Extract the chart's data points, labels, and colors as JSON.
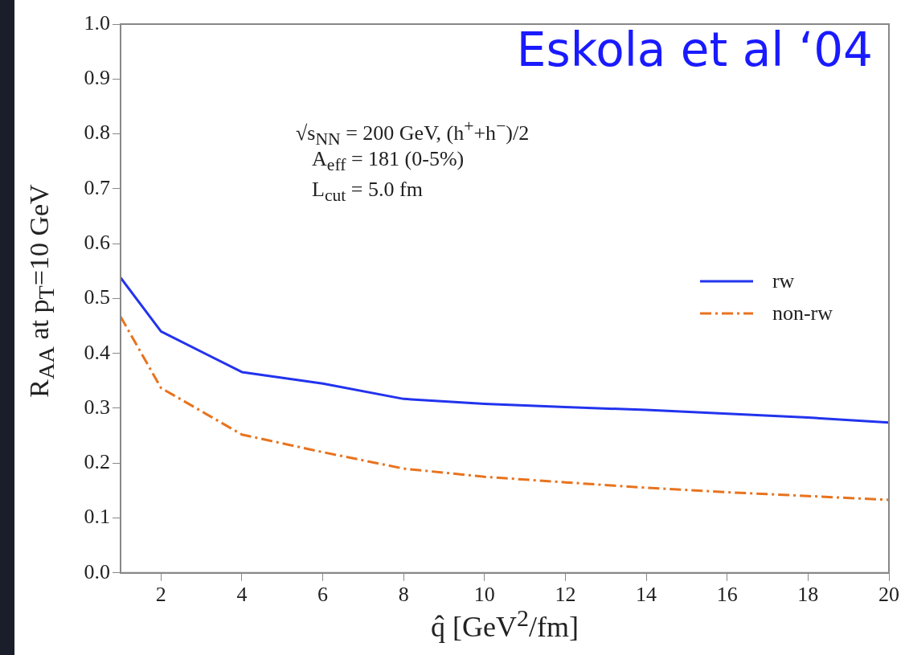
{
  "chart_data": {
    "type": "line",
    "xlabel": "q̂ [GeV$^{2}$/fm]",
    "ylabel": "R$_{AA}$ at p$_{T}$=10 GeV",
    "annotations": [
      "Eskola et al ‘04",
      "√s$_{NN}$ = 200 GeV, (h$^{+}$+h$^{−}$)/2",
      "A$_{eff}$ = 181 (0-5%)",
      "L$_{cut}$ = 5.0 fm"
    ],
    "x": [
      1,
      2,
      4,
      6,
      8,
      10,
      12,
      14,
      16,
      18,
      20
    ],
    "series": [
      {
        "name": "rw",
        "color": "#2233ee",
        "line_style": "solid",
        "values": [
          0.538,
          0.44,
          0.366,
          0.345,
          0.317,
          0.308,
          0.302,
          0.297,
          0.29,
          0.283,
          0.274
        ]
      },
      {
        "name": "non-rw",
        "color": "#e8731e",
        "line_style": "dashdot",
        "values": [
          0.467,
          0.337,
          0.252,
          0.22,
          0.19,
          0.175,
          0.165,
          0.155,
          0.147,
          0.14,
          0.133
        ]
      }
    ],
    "xlim": [
      1,
      20
    ],
    "xticks": [
      2,
      4,
      6,
      8,
      10,
      12,
      14,
      16,
      18,
      20
    ],
    "ylim": [
      0,
      1
    ],
    "yticks": [
      {
        "value": 0,
        "label": "0.0"
      },
      {
        "value": 0.1,
        "label": "0.1"
      },
      {
        "value": 0.2,
        "label": "0.2"
      },
      {
        "value": 0.3,
        "label": "0.3"
      },
      {
        "value": 0.4,
        "label": "0.4"
      },
      {
        "value": 0.5,
        "label": "0.5"
      },
      {
        "value": 0.6,
        "label": "0.6"
      },
      {
        "value": 0.7,
        "label": "0.7"
      },
      {
        "value": 0.8,
        "label": "0.8"
      },
      {
        "value": 0.9,
        "label": "0.9"
      },
      {
        "value": 1,
        "label": "1.0"
      }
    ],
    "legend": "right",
    "grid": false,
    "marker": "none"
  }
}
